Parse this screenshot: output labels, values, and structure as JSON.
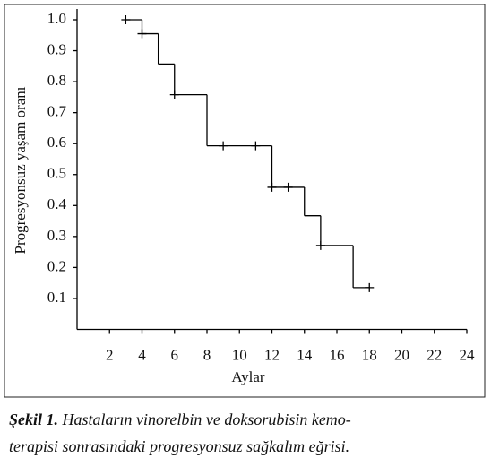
{
  "chart_data": {
    "type": "step",
    "y_label": "Progresyonsuz yaşam oranı",
    "x_label": "Aylar",
    "x": [
      3,
      4,
      5,
      6,
      8,
      12,
      14,
      15,
      17,
      18
    ],
    "values": [
      1.0,
      0.955,
      0.857,
      0.758,
      0.593,
      0.459,
      0.367,
      0.271,
      0.135,
      0.135
    ],
    "censored": {
      "x": [
        3,
        4,
        6,
        9,
        11,
        12,
        13,
        15,
        18
      ],
      "values": [
        1.0,
        0.955,
        0.758,
        0.593,
        0.593,
        0.459,
        0.459,
        0.271,
        0.135
      ]
    },
    "color": "#000000",
    "xlim": [
      0,
      24
    ],
    "xticks": [
      2,
      4,
      6,
      8,
      10,
      12,
      14,
      16,
      18,
      20,
      22,
      24
    ],
    "ylim": [
      0,
      1
    ],
    "yticks": [
      0.1,
      0.2,
      0.3,
      0.4,
      0.5,
      0.6,
      0.7,
      0.8,
      0.9,
      {
        "value": 1,
        "label": "1.0"
      }
    ]
  },
  "caption": {
    "label": "Şekil 1.",
    "lines": [
      "Hastaların vinorelbin ve doksorubisin kemo-",
      "terapisi sonrasındaki progresyonsuz sağkalım eğrisi."
    ]
  }
}
